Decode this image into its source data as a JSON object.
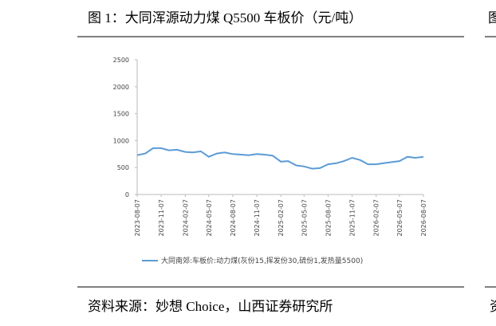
{
  "title": "图 1：大同浑源动力煤 Q5500 车板价（元/吨）",
  "source": "资料来源：妙想 Choice，山西证券研究所",
  "side_title": "图",
  "side_source": "资",
  "chart_data": {
    "type": "line",
    "x": [
      "2023-08-07",
      "2023-09-07",
      "2023-10-07",
      "2023-11-07",
      "2023-12-07",
      "2024-01-07",
      "2024-02-07",
      "2024-03-07",
      "2024-04-07",
      "2024-05-07",
      "2024-06-07",
      "2024-07-07",
      "2024-08-07",
      "2024-09-07",
      "2024-10-07",
      "2024-11-07",
      "2024-12-07",
      "2025-01-07",
      "2025-02-07",
      "2025-03-07",
      "2025-04-07",
      "2025-05-07",
      "2025-06-07",
      "2025-07-07",
      "2025-08-07",
      "2025-09-07",
      "2025-10-07",
      "2025-11-07",
      "2025-12-07",
      "2026-01-07",
      "2026-02-07",
      "2026-03-07",
      "2026-04-07",
      "2026-05-07",
      "2026-06-07",
      "2026-07-07",
      "2026-08-07"
    ],
    "series": [
      {
        "name": "大同南郊:车板价:动力煤(灰份15,挥发份30,硫份1,发热量5500)",
        "color": "#5b9bd5",
        "values": [
          730,
          760,
          860,
          860,
          820,
          830,
          790,
          780,
          800,
          700,
          760,
          780,
          750,
          740,
          730,
          750,
          740,
          720,
          610,
          620,
          540,
          520,
          480,
          490,
          560,
          580,
          620,
          680,
          640,
          560,
          560,
          580,
          600,
          620,
          700,
          680,
          700
        ]
      }
    ],
    "xlim": [
      "2023-08-07",
      "2026-08-07"
    ],
    "xticks": [
      "2023-08-07",
      "2023-11-07",
      "2024-02-07",
      "2024-05-07",
      "2024-08-07",
      "2024-11-07",
      "2025-02-07",
      "2025-05-07",
      "2025-08-07",
      "2025-11-07",
      "2026-02-07",
      "2026-05-07",
      "2026-08-07"
    ],
    "ylim": [
      0,
      2500
    ],
    "yticks": [
      0,
      500,
      1000,
      1500,
      2000,
      2500
    ],
    "grid": false,
    "legend": "bottom"
  }
}
